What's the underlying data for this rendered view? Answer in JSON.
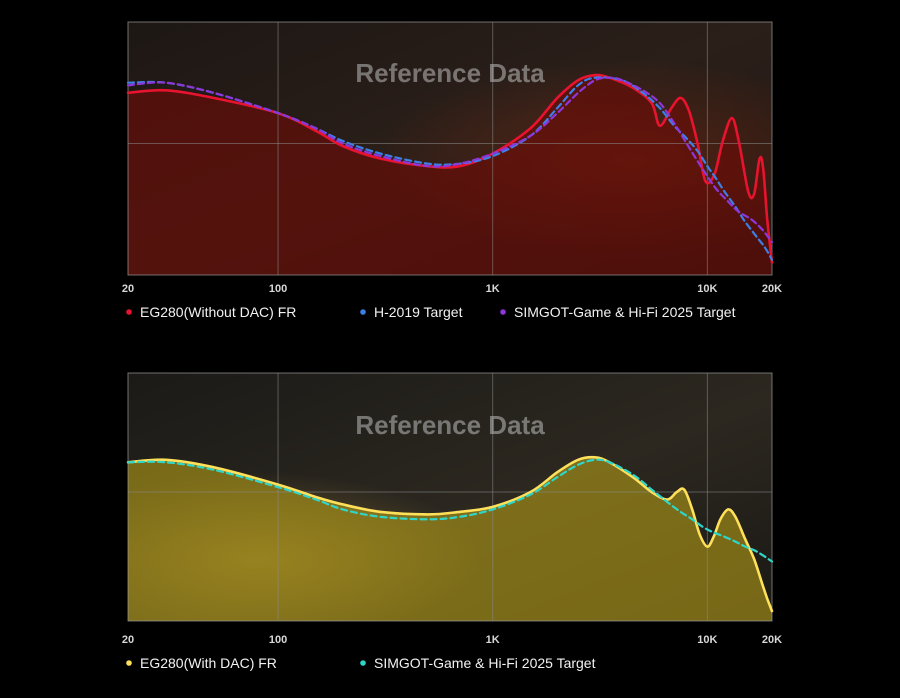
{
  "chart_data": [
    {
      "type": "line",
      "watermark": "Reference Data",
      "x_ticks": [
        {
          "value": 20,
          "label": "20"
        },
        {
          "value": 100,
          "label": "100"
        },
        {
          "value": 1000,
          "label": "1K"
        },
        {
          "value": 10000,
          "label": "10K"
        },
        {
          "value": 20000,
          "label": "20K"
        }
      ],
      "xscale": "log",
      "xlim": [
        20,
        20000
      ],
      "ylim": [
        0,
        100
      ],
      "grid": true,
      "legend_position": "bottom",
      "series": [
        {
          "name": "EG280(Without DAC) FR",
          "color": "#e8132f",
          "style": "solid",
          "fill": "#6e0c06",
          "points": [
            [
              20,
              72
            ],
            [
              30,
              73
            ],
            [
              50,
              70
            ],
            [
              100,
              64
            ],
            [
              150,
              57
            ],
            [
              200,
              51
            ],
            [
              300,
              46
            ],
            [
              500,
              43
            ],
            [
              700,
              43
            ],
            [
              1000,
              48
            ],
            [
              1500,
              58
            ],
            [
              2000,
              70
            ],
            [
              2500,
              77
            ],
            [
              3000,
              79
            ],
            [
              3500,
              78
            ],
            [
              4500,
              74
            ],
            [
              5500,
              68
            ],
            [
              6000,
              59
            ],
            [
              6800,
              66
            ],
            [
              7500,
              70
            ],
            [
              8200,
              65
            ],
            [
              9000,
              52
            ],
            [
              9800,
              37
            ],
            [
              10800,
              40
            ],
            [
              11800,
              53
            ],
            [
              13000,
              62
            ],
            [
              14000,
              53
            ],
            [
              15500,
              33
            ],
            [
              16500,
              32
            ],
            [
              17500,
              46
            ],
            [
              18200,
              42
            ],
            [
              19000,
              22
            ],
            [
              20000,
              5
            ]
          ]
        },
        {
          "name": "H-2019 Target",
          "color": "#3d7fe6",
          "style": "dashed",
          "points": [
            [
              20,
              76
            ],
            [
              30,
              76
            ],
            [
              50,
              72
            ],
            [
              100,
              64
            ],
            [
              150,
              58
            ],
            [
              200,
              53
            ],
            [
              300,
              48
            ],
            [
              500,
              44
            ],
            [
              700,
              44
            ],
            [
              1000,
              47
            ],
            [
              1500,
              55
            ],
            [
              2000,
              66
            ],
            [
              2500,
              75
            ],
            [
              3000,
              78
            ],
            [
              4000,
              77
            ],
            [
              5000,
              72
            ],
            [
              6000,
              66
            ],
            [
              7000,
              59
            ],
            [
              8000,
              54
            ],
            [
              9000,
              49
            ],
            [
              10000,
              43
            ],
            [
              11000,
              38
            ],
            [
              12000,
              33
            ],
            [
              13500,
              27
            ],
            [
              15000,
              21
            ],
            [
              17000,
              15
            ],
            [
              18500,
              11
            ],
            [
              20000,
              6
            ]
          ]
        },
        {
          "name": "SIMGOT-Game & Hi-Fi 2025 Target",
          "color": "#8d36d9",
          "style": "dashed",
          "points": [
            [
              20,
              75
            ],
            [
              30,
              76
            ],
            [
              50,
              72
            ],
            [
              100,
              64
            ],
            [
              150,
              58
            ],
            [
              200,
              52
            ],
            [
              300,
              47
            ],
            [
              500,
              43
            ],
            [
              700,
              44
            ],
            [
              1000,
              48
            ],
            [
              1500,
              55
            ],
            [
              2000,
              64
            ],
            [
              2500,
              72
            ],
            [
              3000,
              77
            ],
            [
              3500,
              78
            ],
            [
              4000,
              77
            ],
            [
              5000,
              73
            ],
            [
              6000,
              68
            ],
            [
              7000,
              60
            ],
            [
              8000,
              52
            ],
            [
              9000,
              45
            ],
            [
              10000,
              39
            ],
            [
              11000,
              34
            ],
            [
              12500,
              29
            ],
            [
              14000,
              25
            ],
            [
              16000,
              22
            ],
            [
              18000,
              18
            ],
            [
              20000,
              13
            ]
          ]
        }
      ]
    },
    {
      "type": "line",
      "watermark": "Reference Data",
      "x_ticks": [
        {
          "value": 20,
          "label": "20"
        },
        {
          "value": 100,
          "label": "100"
        },
        {
          "value": 1000,
          "label": "1K"
        },
        {
          "value": 10000,
          "label": "10K"
        },
        {
          "value": 20000,
          "label": "20K"
        }
      ],
      "xscale": "log",
      "xlim": [
        20,
        20000
      ],
      "ylim": [
        0,
        100
      ],
      "grid": true,
      "legend_position": "bottom",
      "series": [
        {
          "name": "EG280(With DAC) FR",
          "color": "#ffe05a",
          "style": "solid",
          "fill": "#b09a18",
          "points": [
            [
              20,
              64
            ],
            [
              30,
              65
            ],
            [
              50,
              62
            ],
            [
              100,
              55
            ],
            [
              150,
              50
            ],
            [
              200,
              47
            ],
            [
              300,
              44
            ],
            [
              500,
              43
            ],
            [
              700,
              44
            ],
            [
              1000,
              46
            ],
            [
              1500,
              52
            ],
            [
              2000,
              60
            ],
            [
              2500,
              65
            ],
            [
              3000,
              66
            ],
            [
              3500,
              64
            ],
            [
              4500,
              58
            ],
            [
              5500,
              52
            ],
            [
              6500,
              49
            ],
            [
              7200,
              52
            ],
            [
              7800,
              53
            ],
            [
              8500,
              45
            ],
            [
              9200,
              35
            ],
            [
              10000,
              30
            ],
            [
              10700,
              34
            ],
            [
              11500,
              41
            ],
            [
              12500,
              45
            ],
            [
              13500,
              42
            ],
            [
              15000,
              33
            ],
            [
              16500,
              25
            ],
            [
              18000,
              15
            ],
            [
              19000,
              9
            ],
            [
              20000,
              4
            ]
          ]
        },
        {
          "name": "SIMGOT-Game & Hi-Fi 2025 Target",
          "color": "#2fd6c8",
          "style": "dashed",
          "points": [
            [
              20,
              64
            ],
            [
              30,
              64
            ],
            [
              50,
              61
            ],
            [
              100,
              54
            ],
            [
              150,
              49
            ],
            [
              200,
              45
            ],
            [
              300,
              42
            ],
            [
              500,
              41
            ],
            [
              700,
              42
            ],
            [
              1000,
              45
            ],
            [
              1500,
              51
            ],
            [
              2000,
              58
            ],
            [
              2500,
              63
            ],
            [
              3000,
              65
            ],
            [
              3500,
              64
            ],
            [
              4500,
              59
            ],
            [
              5500,
              53
            ],
            [
              6500,
              48
            ],
            [
              7500,
              44
            ],
            [
              8500,
              41
            ],
            [
              9500,
              38
            ],
            [
              10500,
              36
            ],
            [
              12000,
              34
            ],
            [
              13500,
              32
            ],
            [
              15000,
              30
            ],
            [
              17000,
              28
            ],
            [
              20000,
              24
            ]
          ]
        }
      ]
    }
  ]
}
